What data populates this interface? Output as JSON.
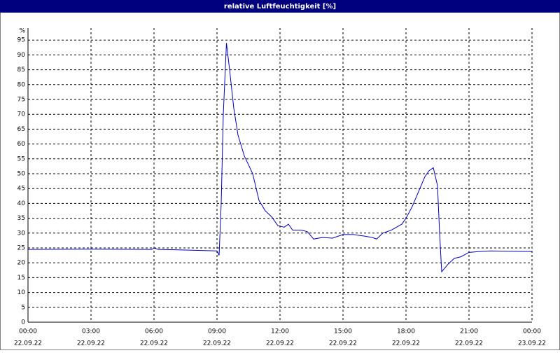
{
  "chart_data": {
    "type": "line",
    "title": "relative Luftfeuchtigkeit [%]",
    "y_label": "%",
    "x": [
      0,
      3,
      5.9,
      6,
      6.2,
      7.5,
      9.0,
      9.1,
      9.2,
      9.3,
      9.45,
      9.6,
      9.8,
      10.0,
      10.3,
      10.7,
      11.0,
      11.3,
      11.6,
      11.9,
      12.2,
      12.4,
      12.6,
      13,
      13.3,
      13.6,
      14,
      14.5,
      15,
      15.5,
      16,
      16.4,
      16.6,
      16.9,
      17.3,
      17.8,
      18,
      18.3,
      18.6,
      18.9,
      19.1,
      19.3,
      19.5,
      19.6,
      19.7,
      20,
      20.3,
      20.6,
      21,
      21.5,
      22,
      24
    ],
    "series": [
      {
        "name": "relative Luftfeuchtigkeit",
        "color": "#0000c0",
        "values": [
          24.5,
          24.6,
          24.5,
          25,
          24.5,
          24.3,
          24,
          22.5,
          40,
          70,
          94,
          85,
          72,
          63,
          56,
          50,
          41,
          37.5,
          35.5,
          32.5,
          32,
          33,
          31,
          31,
          30.5,
          28,
          28.5,
          28.3,
          29.5,
          29.5,
          29,
          28.5,
          28,
          30,
          31,
          33,
          35,
          39,
          44,
          49,
          51,
          52,
          46,
          30,
          17,
          19.5,
          21.5,
          22,
          23.5,
          23.8,
          24,
          23.8
        ]
      }
    ],
    "xlim": [
      0,
      24
    ],
    "xticks": [
      {
        "value": 0,
        "label": "00:00"
      },
      {
        "value": 3,
        "label": "03:00"
      },
      {
        "value": 6,
        "label": "06:00"
      },
      {
        "value": 9,
        "label": "09:00"
      },
      {
        "value": 12,
        "label": "12:00"
      },
      {
        "value": 15,
        "label": "15:00"
      },
      {
        "value": 18,
        "label": "18:00"
      },
      {
        "value": 21,
        "label": "21:00"
      },
      {
        "value": 24,
        "label": "00:00"
      }
    ],
    "xtick_dates": [
      "22.09.22",
      "22.09.22",
      "22.09.22",
      "22.09.22",
      "22.09.22",
      "22.09.22",
      "22.09.22",
      "22.09.22",
      "23.09.22"
    ],
    "ylim": [
      0,
      100
    ],
    "yticks": [
      0,
      5,
      10,
      15,
      20,
      25,
      30,
      35,
      40,
      45,
      50,
      55,
      60,
      65,
      70,
      75,
      80,
      85,
      90,
      95
    ],
    "grid": true
  }
}
